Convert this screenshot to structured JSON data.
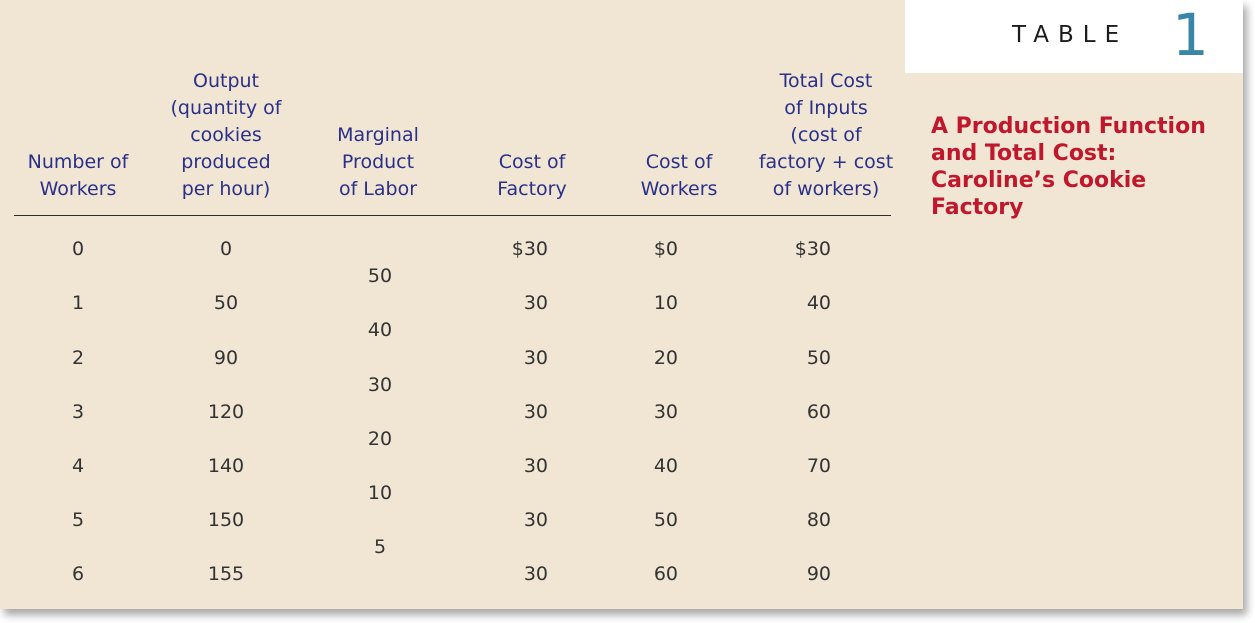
{
  "label": {
    "word": "TABLE",
    "number": "1"
  },
  "caption": {
    "lines": [
      "A Production Function",
      "and Total Cost:",
      "Caroline’s Cookie",
      "Factory"
    ]
  },
  "headers": {
    "workers": [
      "Number of",
      "Workers"
    ],
    "output": [
      "Output",
      "(quantity of",
      "cookies",
      "produced",
      "per hour)"
    ],
    "mpl": [
      "Marginal",
      "Product",
      "of Labor"
    ],
    "factory": [
      "Cost of",
      "Factory"
    ],
    "worker_cost": [
      "Cost of",
      "Workers"
    ],
    "total": [
      "Total Cost",
      "of Inputs",
      "(cost of",
      "factory + cost",
      "of workers)"
    ]
  },
  "rows": [
    {
      "workers": "0",
      "output": "0",
      "factory": "$30",
      "worker_cost": "$0",
      "total": "$30"
    },
    {
      "workers": "1",
      "output": "50",
      "factory": "30",
      "worker_cost": "10",
      "total": "40"
    },
    {
      "workers": "2",
      "output": "90",
      "factory": "30",
      "worker_cost": "20",
      "total": "50"
    },
    {
      "workers": "3",
      "output": "120",
      "factory": "30",
      "worker_cost": "30",
      "total": "60"
    },
    {
      "workers": "4",
      "output": "140",
      "factory": "30",
      "worker_cost": "40",
      "total": "70"
    },
    {
      "workers": "5",
      "output": "150",
      "factory": "30",
      "worker_cost": "50",
      "total": "80"
    },
    {
      "workers": "6",
      "output": "155",
      "factory": "30",
      "worker_cost": "60",
      "total": "90"
    }
  ],
  "marginal_product": [
    "50",
    "40",
    "30",
    "20",
    "10",
    "5"
  ],
  "colors": {
    "background": "#f0e6d3",
    "header_text": "#2a2f8a",
    "caption": "#c0172c",
    "table_number": "#3a86a8"
  }
}
